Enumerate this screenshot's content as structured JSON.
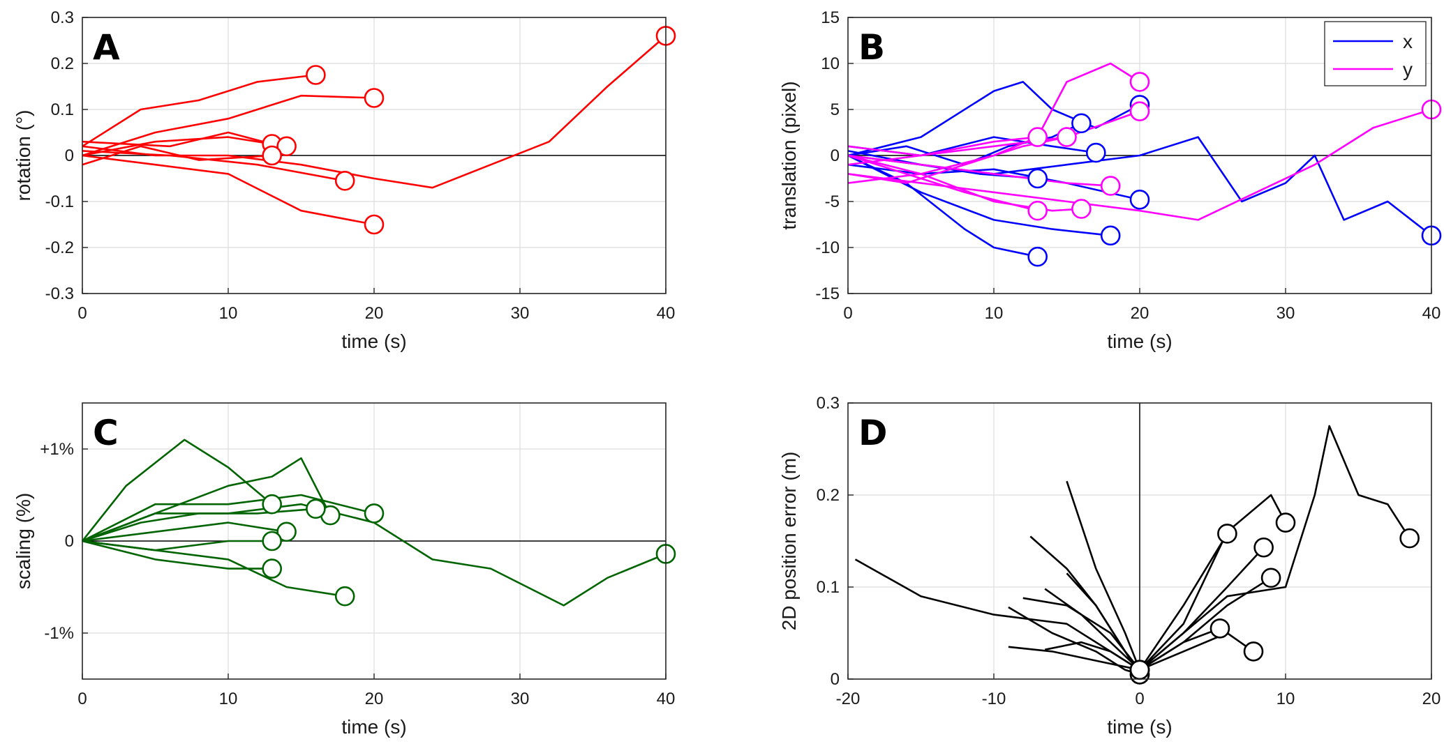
{
  "chart_data": [
    {
      "panel": "A",
      "type": "line",
      "xlabel": "time (s)",
      "ylabel": "rotation (°)",
      "xlim": [
        0,
        40
      ],
      "ylim": [
        -0.3,
        0.3
      ],
      "xticks": [
        "0",
        "10",
        "20",
        "30",
        "40"
      ],
      "yticks": [
        "-0.3",
        "-0.2",
        "-0.1",
        "0",
        "0.1",
        "0.2",
        "0.3"
      ],
      "grid": true,
      "zero_line": true,
      "color": "#ff0000",
      "series": [
        {
          "x": [
            0,
            4,
            8,
            12,
            16
          ],
          "y": [
            0.02,
            0.1,
            0.12,
            0.16,
            0.175
          ]
        },
        {
          "x": [
            0,
            5,
            10,
            15,
            20
          ],
          "y": [
            0.0,
            0.05,
            0.08,
            0.13,
            0.125
          ]
        },
        {
          "x": [
            0,
            6,
            10,
            13
          ],
          "y": [
            0.03,
            0.02,
            0.05,
            0.025
          ]
        },
        {
          "x": [
            0,
            5,
            10,
            14
          ],
          "y": [
            0.0,
            0.03,
            0.04,
            0.02
          ]
        },
        {
          "x": [
            0,
            4,
            8,
            13
          ],
          "y": [
            -0.02,
            0.02,
            -0.01,
            0.0
          ]
        },
        {
          "x": [
            0,
            6,
            12,
            18
          ],
          "y": [
            0.01,
            0.0,
            -0.02,
            -0.055
          ]
        },
        {
          "x": [
            0,
            5,
            10,
            15,
            20
          ],
          "y": [
            0.0,
            -0.02,
            -0.04,
            -0.12,
            -0.15
          ]
        },
        {
          "x": [
            0,
            5,
            10,
            15,
            20,
            24,
            28,
            32,
            36,
            40
          ],
          "y": [
            0.02,
            0.0,
            0.0,
            -0.02,
            -0.05,
            -0.07,
            -0.02,
            0.03,
            0.15,
            0.26
          ]
        }
      ]
    },
    {
      "panel": "B",
      "type": "line",
      "xlabel": "time (s)",
      "ylabel": "translation (pixel)",
      "xlim": [
        0,
        40
      ],
      "ylim": [
        -15,
        15
      ],
      "xticks": [
        "0",
        "10",
        "20",
        "30",
        "40"
      ],
      "yticks": [
        "-15",
        "-10",
        "-5",
        "0",
        "5",
        "10",
        "15"
      ],
      "grid": true,
      "zero_line": true,
      "legend": {
        "position": "top-right",
        "entries": [
          {
            "label": "x",
            "color": "#0000ff"
          },
          {
            "label": "y",
            "color": "#ff00ff"
          }
        ]
      },
      "series": [
        {
          "color": "#0000ff",
          "x": [
            0,
            5,
            10,
            12,
            14,
            17,
            20
          ],
          "y": [
            0,
            2,
            7,
            8,
            5,
            3,
            5.5
          ]
        },
        {
          "color": "#0000ff",
          "x": [
            0,
            4,
            8,
            11,
            14,
            16
          ],
          "y": [
            0,
            1,
            -1,
            1,
            2,
            3.5
          ]
        },
        {
          "color": "#0000ff",
          "x": [
            0,
            4,
            8,
            10,
            13
          ],
          "y": [
            0,
            -3,
            -8,
            -10,
            -11
          ]
        },
        {
          "color": "#0000ff",
          "x": [
            0,
            5,
            10,
            14,
            18
          ],
          "y": [
            0,
            -4,
            -7,
            -8,
            -8.7
          ]
        },
        {
          "color": "#0000ff",
          "x": [
            0,
            5,
            9,
            13
          ],
          "y": [
            0.5,
            -1,
            -2,
            -2.5
          ]
        },
        {
          "color": "#0000ff",
          "x": [
            0,
            5,
            10,
            14,
            17
          ],
          "y": [
            1,
            0,
            2,
            1,
            0.3
          ]
        },
        {
          "color": "#0000ff",
          "x": [
            0,
            5,
            10,
            15,
            20
          ],
          "y": [
            -1,
            -2,
            -1.5,
            -3,
            -4.8
          ]
        },
        {
          "color": "#0000ff",
          "x": [
            0,
            5,
            10,
            15,
            20,
            24,
            27,
            30,
            32,
            34,
            37,
            40
          ],
          "y": [
            0,
            -1,
            -2,
            -1,
            0,
            2,
            -5,
            -3,
            0,
            -7,
            -5,
            -8.7
          ]
        },
        {
          "color": "#ff00ff",
          "x": [
            0,
            5,
            10,
            13,
            15,
            18,
            20
          ],
          "y": [
            0,
            -2,
            0,
            2,
            8,
            10,
            8
          ]
        },
        {
          "color": "#ff00ff",
          "x": [
            0,
            5,
            10,
            15,
            20
          ],
          "y": [
            -1,
            0,
            1,
            2,
            4.8
          ]
        },
        {
          "color": "#ff00ff",
          "x": [
            0,
            4,
            8,
            13
          ],
          "y": [
            0,
            -2,
            -4,
            -6
          ]
        },
        {
          "color": "#ff00ff",
          "x": [
            0,
            4,
            8,
            12,
            15
          ],
          "y": [
            -2,
            -3,
            -1,
            1,
            2
          ]
        },
        {
          "color": "#ff00ff",
          "x": [
            0,
            5,
            10,
            13
          ],
          "y": [
            1,
            0,
            1.5,
            2
          ]
        },
        {
          "color": "#ff00ff",
          "x": [
            0,
            5,
            10,
            14,
            16
          ],
          "y": [
            -3,
            -2,
            -5,
            -6,
            -5.8
          ]
        },
        {
          "color": "#ff00ff",
          "x": [
            0,
            5,
            10,
            15,
            18
          ],
          "y": [
            0,
            -1,
            -2,
            -3,
            -3.3
          ]
        },
        {
          "color": "#ff00ff",
          "x": [
            0,
            5,
            10,
            15,
            20,
            24,
            28,
            32,
            36,
            40
          ],
          "y": [
            -2,
            -3,
            -4,
            -5,
            -6,
            -7,
            -4,
            -1,
            3,
            5
          ]
        }
      ]
    },
    {
      "panel": "C",
      "type": "line",
      "xlabel": "time (s)",
      "ylabel": "scaling (%)",
      "xlim": [
        0,
        40
      ],
      "ylim": [
        -1.5,
        1.5
      ],
      "xticks": [
        "0",
        "10",
        "20",
        "30",
        "40"
      ],
      "yticks": [
        {
          "value": 1,
          "label": "+1%"
        },
        {
          "value": 0,
          "label": "0"
        },
        {
          "value": -1,
          "label": "-1%"
        }
      ],
      "grid": true,
      "zero_line": true,
      "color": "#006400",
      "series": [
        {
          "x": [
            0,
            3,
            7,
            10,
            13
          ],
          "y": [
            0,
            0.6,
            1.1,
            0.8,
            0.4
          ]
        },
        {
          "x": [
            0,
            5,
            10,
            13,
            15,
            17
          ],
          "y": [
            0,
            0.3,
            0.6,
            0.7,
            0.9,
            0.28
          ]
        },
        {
          "x": [
            0,
            5,
            10,
            15,
            20
          ],
          "y": [
            0,
            0.4,
            0.4,
            0.5,
            0.3
          ]
        },
        {
          "x": [
            0,
            4,
            8,
            12,
            16
          ],
          "y": [
            0,
            0.2,
            0.3,
            0.3,
            0.35
          ]
        },
        {
          "x": [
            0,
            5,
            10,
            14
          ],
          "y": [
            0,
            0.1,
            0.2,
            0.1
          ]
        },
        {
          "x": [
            0,
            5,
            10,
            13
          ],
          "y": [
            0,
            -0.1,
            0.0,
            0.0
          ]
        },
        {
          "x": [
            0,
            5,
            10,
            13
          ],
          "y": [
            0,
            -0.2,
            -0.3,
            -0.3
          ]
        },
        {
          "x": [
            0,
            5,
            10,
            14,
            18
          ],
          "y": [
            0,
            -0.1,
            -0.2,
            -0.5,
            -0.6
          ]
        },
        {
          "x": [
            0,
            5,
            10,
            15,
            20,
            24,
            28,
            33,
            36,
            40
          ],
          "y": [
            0,
            0.3,
            0.3,
            0.4,
            0.2,
            -0.2,
            -0.3,
            -0.7,
            -0.4,
            -0.14
          ]
        }
      ]
    },
    {
      "panel": "D",
      "type": "line",
      "xlabel": "time (s)",
      "ylabel": "2D position error (m)",
      "xlim": [
        -20,
        20
      ],
      "ylim": [
        0,
        0.3
      ],
      "xticks": [
        "-20",
        "-10",
        "0",
        "10",
        "20"
      ],
      "yticks": [
        "0",
        "0.1",
        "0.2",
        "0.3"
      ],
      "grid": true,
      "zero_line": true,
      "color": "#000000",
      "series": [
        {
          "x": [
            -19.5,
            -15,
            -10,
            -5,
            -2,
            0
          ],
          "y": [
            0.13,
            0.09,
            0.07,
            0.06,
            0.03,
            0.01
          ]
        },
        {
          "x": [
            -5,
            -3,
            -1,
            0
          ],
          "y": [
            0.215,
            0.12,
            0.05,
            0.01
          ]
        },
        {
          "x": [
            -7.5,
            -5,
            -3,
            -1,
            0
          ],
          "y": [
            0.155,
            0.12,
            0.08,
            0.03,
            0.01
          ]
        },
        {
          "x": [
            -9,
            -6,
            -3,
            -1,
            0
          ],
          "y": [
            0.078,
            0.05,
            0.03,
            0.01,
            0.005
          ]
        },
        {
          "x": [
            -8,
            -5,
            -2,
            0
          ],
          "y": [
            0.088,
            0.08,
            0.05,
            0.01
          ]
        },
        {
          "x": [
            -6.5,
            -4,
            -2,
            0
          ],
          "y": [
            0.098,
            0.07,
            0.04,
            0.01
          ]
        },
        {
          "x": [
            -5,
            -3,
            -1,
            0
          ],
          "y": [
            0.115,
            0.08,
            0.03,
            0.005
          ]
        },
        {
          "x": [
            -9,
            -6,
            -3,
            0
          ],
          "y": [
            0.035,
            0.03,
            0.02,
            0.01
          ]
        },
        {
          "x": [
            -6.5,
            -4,
            -2,
            0
          ],
          "y": [
            0.032,
            0.04,
            0.03,
            0.01
          ]
        },
        {
          "x": [
            0,
            3,
            6,
            9,
            10
          ],
          "y": [
            0.01,
            0.06,
            0.16,
            0.2,
            0.17
          ]
        },
        {
          "x": [
            0,
            3,
            6
          ],
          "y": [
            0.01,
            0.08,
            0.158
          ]
        },
        {
          "x": [
            0,
            3,
            6,
            8.5
          ],
          "y": [
            0.01,
            0.05,
            0.1,
            0.143
          ]
        },
        {
          "x": [
            0,
            3,
            6,
            9
          ],
          "y": [
            0.01,
            0.04,
            0.08,
            0.11
          ]
        },
        {
          "x": [
            0,
            3,
            5.5
          ],
          "y": [
            0.01,
            0.04,
            0.055
          ]
        },
        {
          "x": [
            0,
            3,
            6,
            7.8
          ],
          "y": [
            0.01,
            0.03,
            0.05,
            0.03
          ]
        },
        {
          "x": [
            0,
            3,
            6,
            10,
            12,
            13,
            15,
            17,
            18.5
          ],
          "y": [
            0.01,
            0.05,
            0.09,
            0.1,
            0.2,
            0.275,
            0.2,
            0.19,
            0.153
          ]
        }
      ]
    }
  ]
}
